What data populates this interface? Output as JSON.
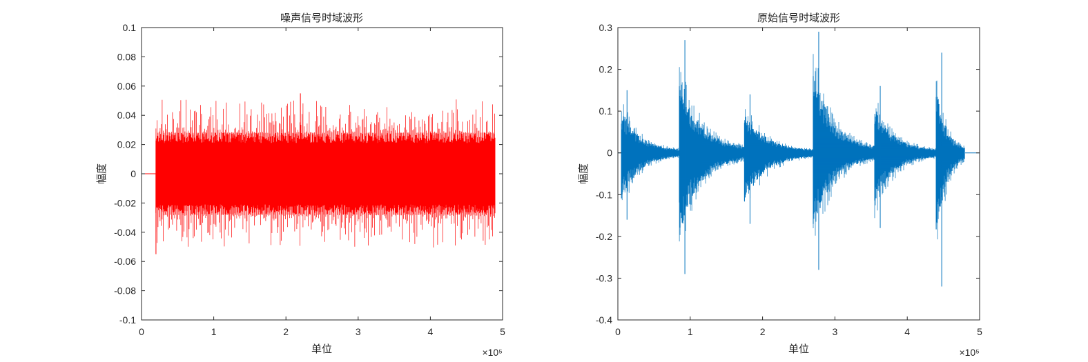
{
  "chart_data": [
    {
      "type": "line",
      "title": "噪声信号时域波形",
      "xlabel": "单位",
      "ylabel": "幅度",
      "x_exponent_label": "×10⁵",
      "xlim": [
        0,
        500000
      ],
      "ylim": [
        -0.1,
        0.1
      ],
      "xticks": [
        0,
        1,
        2,
        3,
        4,
        5
      ],
      "xtick_labels": [
        "0",
        "1",
        "2",
        "3",
        "4",
        "5"
      ],
      "yticks": [
        0.1,
        0.08,
        0.06,
        0.04,
        0.02,
        0,
        -0.02,
        -0.04,
        -0.06,
        -0.08,
        -0.1
      ],
      "ytick_labels": [
        "0.1",
        "0.08",
        "0.06",
        "0.04",
        "0.02",
        "0",
        "-0.02",
        "-0.04",
        "-0.06",
        "-0.08",
        "-0.1"
      ],
      "grid": false,
      "color": "#ff0000",
      "series": [
        {
          "signal": "zero from x=0 to x=20000, then dense noise until x=490000",
          "x_start": 0,
          "x_active_start": 20000,
          "x_end": 490000,
          "typical_envelope": [
            -0.028,
            0.028
          ],
          "peak_max": 0.055,
          "peak_max_x": 220000,
          "peak_min": -0.055,
          "peak_min_x": 20000
        }
      ]
    },
    {
      "type": "line",
      "title": "原始信号时域波形",
      "xlabel": "单位",
      "ylabel": "幅度",
      "x_exponent_label": "×10⁵",
      "xlim": [
        0,
        500000
      ],
      "ylim": [
        -0.4,
        0.3
      ],
      "xticks": [
        0,
        1,
        2,
        3,
        4,
        5
      ],
      "xtick_labels": [
        "0",
        "1",
        "2",
        "3",
        "4",
        "5"
      ],
      "yticks": [
        0.3,
        0.2,
        0.1,
        0,
        -0.1,
        -0.2,
        -0.3,
        -0.4
      ],
      "ytick_labels": [
        "0.3",
        "0.2",
        "0.1",
        "0",
        "-0.1",
        "-0.2",
        "-0.3",
        "-0.4"
      ],
      "grid": false,
      "color": "#0072bd",
      "series": [
        {
          "signal": "audio waveform made of decaying bursts",
          "x_end": 480000,
          "bursts": [
            {
              "x_start": 5000,
              "x_end": 85000,
              "peak_pos": 0.15,
              "peak_neg": -0.16
            },
            {
              "x_start": 85000,
              "x_end": 175000,
              "peak_pos": 0.27,
              "peak_neg": -0.29
            },
            {
              "x_start": 175000,
              "x_end": 270000,
              "peak_pos": 0.14,
              "peak_neg": -0.17
            },
            {
              "x_start": 270000,
              "x_end": 355000,
              "peak_pos": 0.29,
              "peak_neg": -0.28
            },
            {
              "x_start": 355000,
              "x_end": 440000,
              "peak_pos": 0.16,
              "peak_neg": -0.18
            },
            {
              "x_start": 440000,
              "x_end": 480000,
              "peak_pos": 0.24,
              "peak_neg": -0.32
            }
          ]
        }
      ]
    }
  ]
}
